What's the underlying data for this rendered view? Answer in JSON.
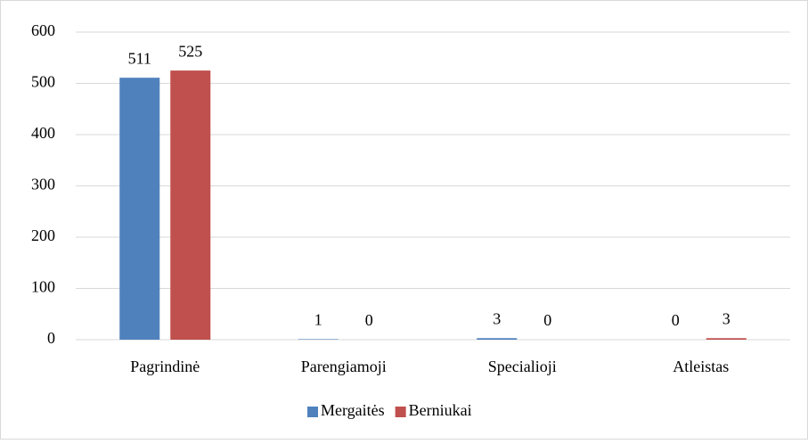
{
  "chart_data": {
    "type": "bar",
    "categories": [
      "Pagrindinė",
      "Parengiamoji",
      "Specialioji",
      "Atleistas"
    ],
    "series": [
      {
        "name": "Mergaitės",
        "color": "#4f81bd",
        "values": [
          511,
          1,
          3,
          0
        ]
      },
      {
        "name": "Berniukai",
        "color": "#c0504d",
        "values": [
          525,
          0,
          0,
          3
        ]
      }
    ],
    "ylim": [
      0,
      600
    ],
    "yticks": [
      0,
      100,
      200,
      300,
      400,
      500,
      600
    ],
    "grid": true,
    "legend": "bottom"
  }
}
